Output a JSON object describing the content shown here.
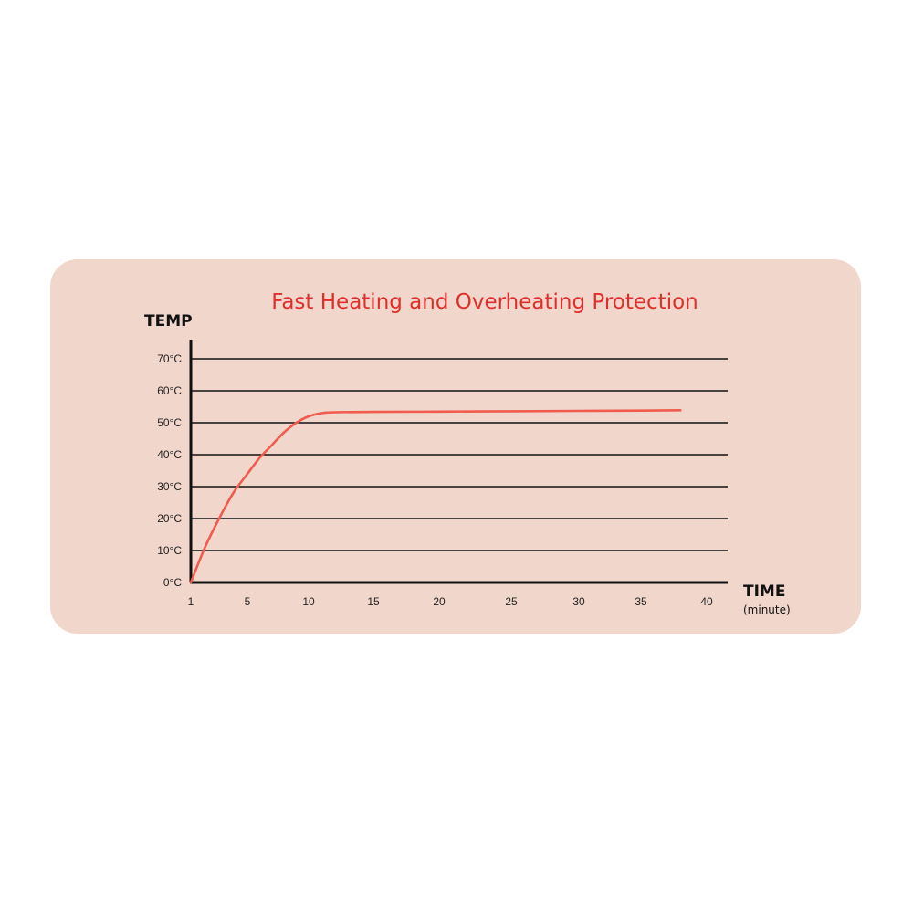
{
  "colors": {
    "page_background": "#ffffff",
    "panel_background": "#f1d6cc",
    "line": "#f05b4e",
    "title": "#e02f2a",
    "axis": "#111111",
    "text": "#222222"
  },
  "chart_data": {
    "type": "line",
    "title": "Fast Heating and Overheating Protection",
    "ylabel": "TEMP",
    "xlabel": "TIME",
    "xunit": "(minute)",
    "x_ticks": [
      1,
      5,
      10,
      15,
      20,
      25,
      30,
      35,
      40
    ],
    "x_tick_labels": [
      "1",
      "5",
      "10",
      "15",
      "20",
      "25",
      "30",
      "35",
      "40"
    ],
    "y_ticks": [
      0,
      10,
      20,
      30,
      40,
      50,
      60,
      70
    ],
    "y_tick_labels": [
      "0°C",
      "10°C",
      "20°C",
      "30°C",
      "40°C",
      "50°C",
      "60°C",
      "70°C"
    ],
    "ylim": [
      0,
      70
    ],
    "grid": true,
    "series": [
      {
        "x": [
          1,
          2,
          3,
          4,
          5,
          6,
          7,
          8,
          9,
          10,
          11,
          12,
          15,
          20,
          25,
          30,
          35,
          38
        ],
        "y": [
          0,
          11,
          20,
          28,
          34,
          39,
          43,
          47,
          50,
          52,
          53,
          53.3,
          53.4,
          53.5,
          53.6,
          53.7,
          53.8,
          53.9
        ]
      }
    ]
  }
}
